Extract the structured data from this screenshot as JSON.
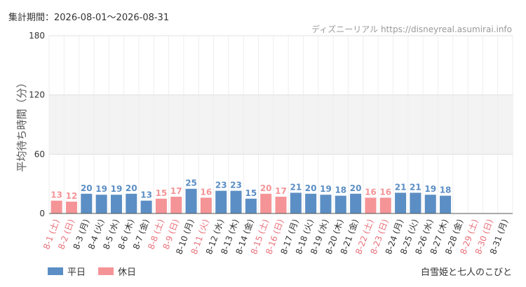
{
  "header": {
    "period_text": "集計期間：2026-08-01～2026-08-31",
    "source_text": "ディズニーリアル https://disneyreal.asumirai.info"
  },
  "footer": {
    "attraction": "白雪姫と七人のこびと"
  },
  "legend": {
    "items": [
      {
        "label": "平日",
        "color": "#5b8ec4"
      },
      {
        "label": "休日",
        "color": "#f59497"
      }
    ]
  },
  "chart_data": {
    "type": "bar",
    "ylabel": "平均待ち時間（分）",
    "ylim": [
      0,
      180
    ],
    "yticks": [
      0,
      60,
      120,
      180
    ],
    "grid": true,
    "categories": [
      "8-1 (土)",
      "8-2 (日)",
      "8-3 (月)",
      "8-4 (火)",
      "8-5 (水)",
      "8-6 (木)",
      "8-7 (金)",
      "8-8 (土)",
      "8-9 (日)",
      "8-10 (月)",
      "8-11 (火)",
      "8-12 (水)",
      "8-13 (木)",
      "8-14 (金)",
      "8-15 (土)",
      "8-16 (日)",
      "8-17 (月)",
      "8-18 (火)",
      "8-19 (水)",
      "8-20 (木)",
      "8-21 (金)",
      "8-22 (土)",
      "8-23 (日)",
      "8-24 (月)",
      "8-25 (火)",
      "8-26 (水)",
      "8-27 (木)",
      "8-28 (金)",
      "8-29 (土)",
      "8-30 (日)",
      "8-31 (月)"
    ],
    "values": [
      13,
      12,
      20,
      19,
      19,
      20,
      13,
      15,
      17,
      25,
      16,
      23,
      23,
      15,
      20,
      17,
      21,
      20,
      19,
      18,
      20,
      16,
      16,
      21,
      21,
      19,
      18,
      null,
      null,
      null,
      null
    ],
    "day_type": [
      "休日",
      "休日",
      "平日",
      "平日",
      "平日",
      "平日",
      "平日",
      "休日",
      "休日",
      "平日",
      "休日",
      "平日",
      "平日",
      "平日",
      "休日",
      "休日",
      "平日",
      "平日",
      "平日",
      "平日",
      "平日",
      "休日",
      "休日",
      "平日",
      "平日",
      "平日",
      "平日",
      "平日",
      "休日",
      "休日",
      "平日"
    ],
    "colors": {
      "平日": "#5b8ec4",
      "休日": "#f59497",
      "weekday_label": "#333333",
      "holiday_label": "#e8707a"
    }
  }
}
